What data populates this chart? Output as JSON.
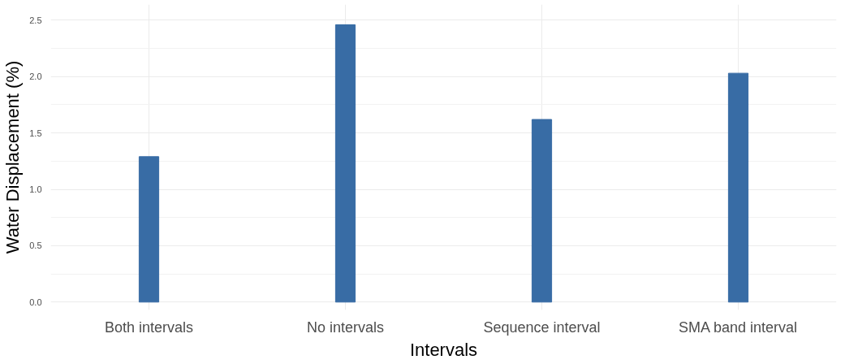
{
  "chart_data": {
    "type": "bar",
    "xlabel": "Intervals",
    "ylabel": "Water Displacement (%)",
    "categories": [
      "Both intervals",
      "No intervals",
      "Sequence interval",
      "SMA band interval"
    ],
    "values": [
      1.29,
      2.46,
      1.62,
      2.03
    ],
    "color": "#386ca5",
    "ylim": [
      -0.07,
      2.64
    ],
    "yticks": [
      {
        "value": 0,
        "label": "0.0"
      },
      {
        "value": 0.5,
        "label": "0.5"
      },
      {
        "value": 1,
        "label": "1.0"
      },
      {
        "value": 1.5,
        "label": "1.5"
      },
      {
        "value": 2,
        "label": "2.0"
      },
      {
        "value": 2.5,
        "label": "2.5"
      }
    ],
    "grid": true
  }
}
